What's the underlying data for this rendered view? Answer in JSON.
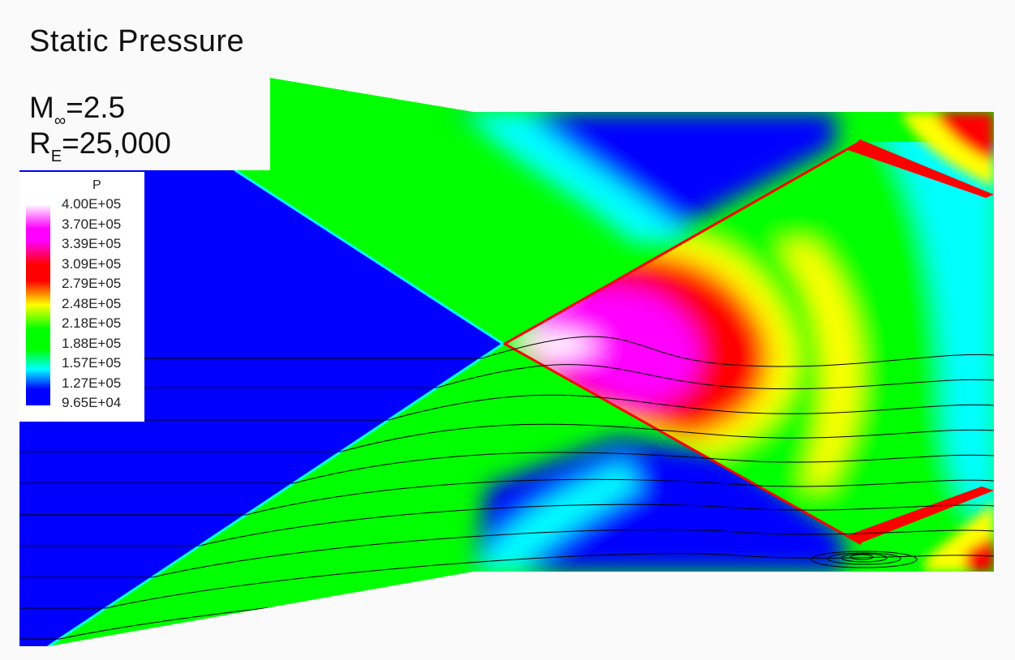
{
  "title": "Static Pressure",
  "parameters": {
    "mach": {
      "symbol": "M",
      "subscript": "∞",
      "value": "=2.5"
    },
    "reynolds": {
      "symbol": "R",
      "subscript": "E",
      "value": "=25,000"
    }
  },
  "legend": {
    "variable": "P",
    "levels": [
      "4.00E+05",
      "3.70E+05",
      "3.39E+05",
      "3.09E+05",
      "2.79E+05",
      "2.48E+05",
      "2.18E+05",
      "1.88E+05",
      "1.57E+05",
      "1.27E+05",
      "9.65E+04"
    ],
    "colors": {
      "white": "#ffffff",
      "magenta": "#ff00ff",
      "red": "#ff0000",
      "yellow": "#ffff00",
      "green": "#00ff00",
      "cyan": "#00ffff",
      "blue": "#0000ff"
    }
  }
}
